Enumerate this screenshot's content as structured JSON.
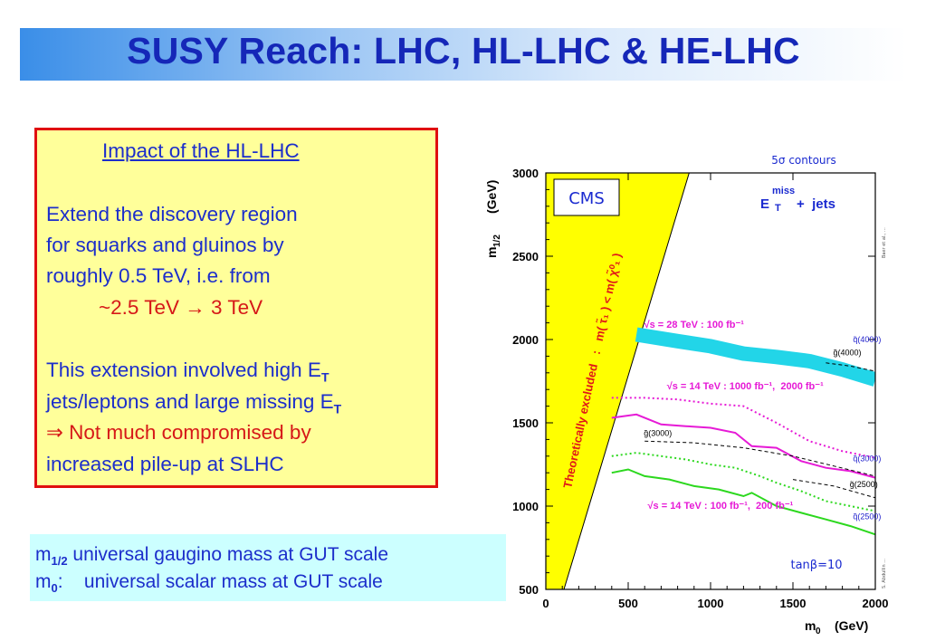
{
  "slide": {
    "title": "SUSY Reach: LHC, HL-LHC & HE-LHC"
  },
  "impact_box": {
    "heading": "Impact of the HL-LHC",
    "line1": "Extend the discovery region",
    "line2": "for squarks and gluinos by",
    "line3": "roughly 0.5 TeV, i.e. from",
    "line4": "~2.5 TeV → 3 TeV",
    "line5_main": "This extension involved high E",
    "line5_sub": "T",
    "line6_main": "jets/leptons and large missing E",
    "line6_sub": "T",
    "line7": "⇒ Not much compromised by",
    "line8": "increased pile-up at SLHC"
  },
  "definitions": {
    "m12_symbol": "m",
    "m12_sub": "1/2",
    "m12_text": " universal gaugino mass at GUT scale",
    "m0_symbol": "m",
    "m0_sub": "0",
    "m0_text": ":    universal scalar mass at GUT scale"
  },
  "figure": {
    "cms_label": "CMS",
    "contours_label": "5σ contours",
    "channel_e": "E",
    "channel_miss": "miss",
    "channel_t": "T",
    "channel_rest": "+  jets",
    "excluded_label": "Theoretically excluded   :   m( τ̃₁ ) < m( χ̃⁰₁ )",
    "tanbeta_label": "tanβ=10",
    "ylabel_main": "m",
    "ylabel_sub": "1/2",
    "ylabel_unit": "(GeV)",
    "xlabel_main": "m",
    "xlabel_sub": "0",
    "xlabel_unit": "(GeV)",
    "side_note_top": "Baer et al., ...",
    "side_note_bottom": "S. Abdullin ..."
  },
  "colors": {
    "title_text": "#1527b8",
    "body_text": "#1c2ecb",
    "emphasis_red": "#d61818",
    "impact_bg": "#ffff9a",
    "impact_border": "#e01010",
    "def_bg": "#ccffff",
    "excluded_yellow": "#ffff00",
    "cyan_band": "#22d5e8",
    "magenta": "#e61ad6",
    "green": "#2cd81e"
  },
  "chart_data": {
    "type": "line",
    "xlabel": "m0 (GeV)",
    "ylabel": "m1/2 (GeV)",
    "xlim": [
      0,
      2000
    ],
    "ylim": [
      500,
      3000
    ],
    "x_ticks": [
      0,
      500,
      1000,
      1500,
      2000
    ],
    "y_ticks": [
      500,
      1000,
      1500,
      2000,
      2500,
      3000
    ],
    "series": [
      {
        "name": "√s = 28 TeV : 100 fb⁻¹",
        "style": "band",
        "color": "#22d5e8",
        "x": [
          550,
          800,
          1000,
          1200,
          1400,
          1600,
          1800,
          2000
        ],
        "y": [
          2030,
          1990,
          1960,
          1915,
          1895,
          1870,
          1820,
          1760
        ]
      },
      {
        "name": "√s = 14 TeV : 1000 fb⁻¹",
        "style": "solid",
        "color": "#e61ad6",
        "x": [
          400,
          550,
          700,
          850,
          1000,
          1150,
          1250,
          1400,
          1550,
          1700,
          1850,
          2000
        ],
        "y": [
          1530,
          1550,
          1490,
          1480,
          1470,
          1440,
          1360,
          1350,
          1270,
          1230,
          1210,
          1170
        ]
      },
      {
        "name": "√s = 14 TeV : 2000 fb⁻¹",
        "style": "dotted",
        "color": "#e61ad6",
        "x": [
          400,
          600,
          800,
          1000,
          1200,
          1400,
          1600,
          1800,
          2000
        ],
        "y": [
          1650,
          1650,
          1640,
          1615,
          1600,
          1500,
          1390,
          1330,
          1290
        ]
      },
      {
        "name": "√s = 14 TeV : 100 fb⁻¹",
        "style": "solid",
        "color": "#2cd81e",
        "x": [
          400,
          500,
          600,
          750,
          900,
          1050,
          1200,
          1250,
          1400,
          1550,
          1700,
          1850,
          2000
        ],
        "y": [
          1200,
          1220,
          1180,
          1160,
          1120,
          1100,
          1060,
          1080,
          1000,
          960,
          920,
          880,
          830
        ]
      },
      {
        "name": "√s = 14 TeV : 200 fb⁻¹",
        "style": "dotted",
        "color": "#2cd81e",
        "x": [
          400,
          550,
          700,
          850,
          1000,
          1150,
          1300,
          1400,
          1550,
          1700,
          1850,
          2000
        ],
        "y": [
          1300,
          1320,
          1300,
          1280,
          1250,
          1230,
          1180,
          1140,
          1090,
          1030,
          1000,
          970
        ]
      },
      {
        "name": "g̃(4000)",
        "style": "dashed",
        "color": "#000000",
        "x": [
          1700,
          1850,
          2000
        ],
        "y": [
          1860,
          1840,
          1810
        ]
      },
      {
        "name": "g̃(3000)",
        "style": "dashed",
        "color": "#000000",
        "x": [
          600,
          900,
          1200,
          1500,
          1750,
          2000
        ],
        "y": [
          1390,
          1380,
          1350,
          1300,
          1240,
          1180
        ]
      },
      {
        "name": "g̃(2500)",
        "style": "dashed",
        "color": "#000000",
        "x": [
          1500,
          1750,
          2000
        ],
        "y": [
          1160,
          1120,
          1050
        ]
      }
    ],
    "curve_labels": [
      {
        "text": "√s = 28 TeV : 100 fb⁻¹",
        "x": 900,
        "y": 2070,
        "color": "#e61ad6"
      },
      {
        "text": "√s = 14 TeV : 1000 fb⁻¹,  2000 fb⁻¹",
        "x": 1210,
        "y": 1700,
        "color": "#e61ad6"
      },
      {
        "text": "√s = 14 TeV : 100 fb⁻¹,  200 fb⁻¹",
        "x": 1060,
        "y": 985,
        "color": "#e61ad6"
      },
      {
        "text": "g̃(4000)",
        "x": 1830,
        "y": 1905,
        "color": "#000000"
      },
      {
        "text": "q̃(4000)",
        "x": 1950,
        "y": 1985,
        "color": "#2222cc"
      },
      {
        "text": "g̃(3000)",
        "x": 680,
        "y": 1420,
        "color": "#000000"
      },
      {
        "text": "q̃(3000)",
        "x": 1950,
        "y": 1270,
        "color": "#2222cc"
      },
      {
        "text": "g̃(2500)",
        "x": 1930,
        "y": 1115,
        "color": "#000000"
      },
      {
        "text": "q̃(2500)",
        "x": 1950,
        "y": 920,
        "color": "#2222cc"
      }
    ],
    "excluded_region": {
      "color": "#ffff00",
      "boundary_x": [
        110,
        870
      ],
      "boundary_y": [
        500,
        3000
      ]
    }
  }
}
